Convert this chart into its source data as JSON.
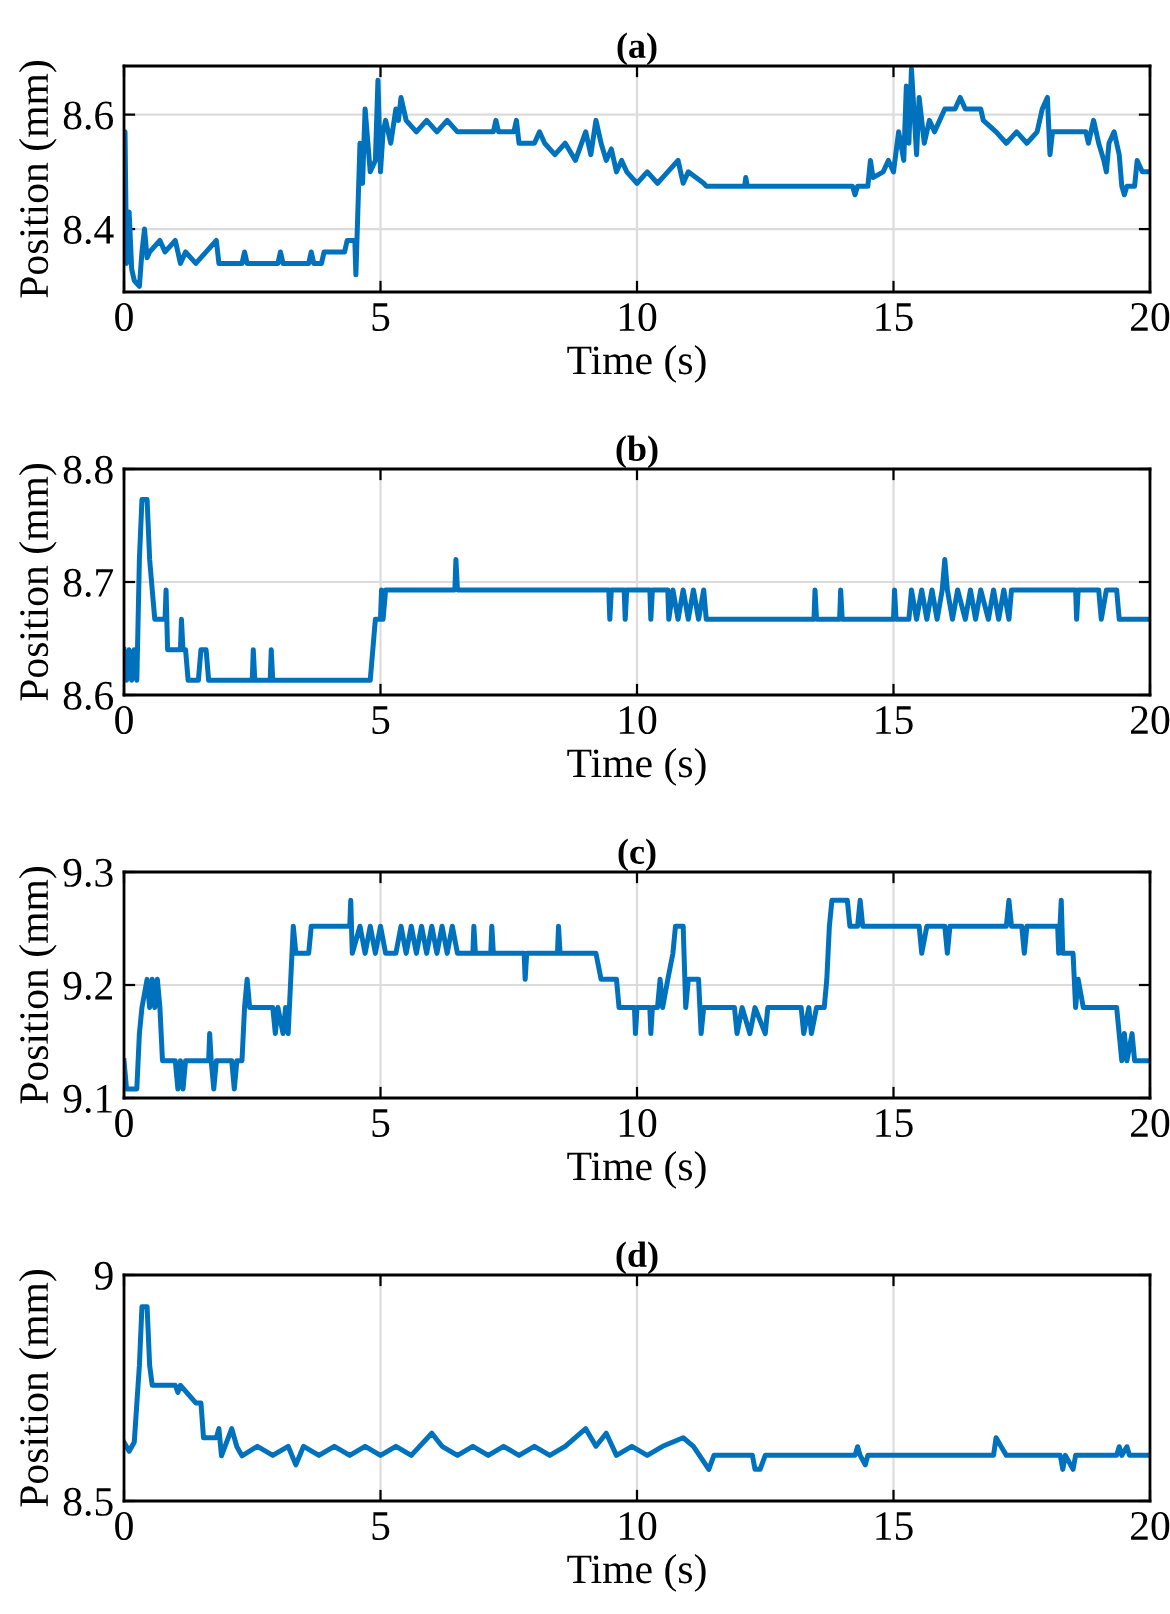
{
  "chart_data": [
    {
      "type": "line",
      "title": "(a)",
      "xlabel": "Time (s)",
      "ylabel": "Position (mm)",
      "xlim": [
        0,
        20
      ],
      "ylim": [
        8.29,
        8.685
      ],
      "xticks": [
        0,
        5,
        10,
        15,
        20
      ],
      "yticks": [
        8.4,
        8.6
      ],
      "grid": true,
      "series": [
        {
          "color": "#0072bd",
          "x": [
            0,
            0.02,
            0.05,
            0.1,
            0.15,
            0.2,
            0.3,
            0.35,
            0.4,
            0.45,
            0.5,
            0.7,
            0.8,
            1.0,
            1.1,
            1.2,
            1.4,
            1.6,
            1.8,
            1.85,
            2.3,
            2.35,
            2.4,
            3.0,
            3.05,
            3.1,
            3.6,
            3.65,
            3.7,
            3.85,
            3.9,
            4.3,
            4.35,
            4.5,
            4.52,
            4.6,
            4.65,
            4.7,
            4.8,
            4.9,
            4.95,
            5.0,
            5.05,
            5.1,
            5.2,
            5.3,
            5.35,
            5.4,
            5.5,
            5.7,
            5.9,
            6.1,
            6.3,
            6.5,
            7.2,
            7.25,
            7.3,
            7.6,
            7.65,
            7.7,
            8.0,
            8.1,
            8.2,
            8.4,
            8.6,
            8.8,
            9.0,
            9.1,
            9.2,
            9.3,
            9.4,
            9.5,
            9.6,
            9.7,
            9.8,
            10.0,
            10.2,
            10.4,
            10.6,
            10.8,
            10.9,
            11.0,
            11.3,
            11.35,
            12.1,
            12.12,
            12.15,
            14.2,
            14.25,
            14.3,
            14.5,
            14.55,
            14.6,
            14.8,
            14.9,
            15.0,
            15.1,
            15.2,
            15.25,
            15.3,
            15.35,
            15.45,
            15.5,
            15.6,
            15.7,
            15.8,
            15.9,
            16.0,
            16.2,
            16.3,
            16.4,
            16.7,
            16.75,
            17.0,
            17.2,
            17.4,
            17.6,
            17.8,
            17.9,
            18.0,
            18.05,
            18.1,
            18.75,
            18.8,
            18.9,
            19.0,
            19.1,
            19.15,
            19.2,
            19.3,
            19.4,
            19.45,
            19.5,
            19.55,
            19.7,
            19.75,
            19.85,
            20
          ],
          "values": [
            8.48,
            8.57,
            8.34,
            8.43,
            8.33,
            8.31,
            8.3,
            8.36,
            8.4,
            8.35,
            8.36,
            8.38,
            8.36,
            8.38,
            8.34,
            8.36,
            8.34,
            8.36,
            8.38,
            8.34,
            8.34,
            8.36,
            8.34,
            8.34,
            8.36,
            8.34,
            8.34,
            8.36,
            8.34,
            8.34,
            8.36,
            8.36,
            8.38,
            8.38,
            8.32,
            8.55,
            8.48,
            8.61,
            8.5,
            8.52,
            8.66,
            8.5,
            8.57,
            8.59,
            8.55,
            8.61,
            8.59,
            8.63,
            8.59,
            8.57,
            8.59,
            8.57,
            8.59,
            8.57,
            8.57,
            8.59,
            8.57,
            8.57,
            8.59,
            8.55,
            8.55,
            8.57,
            8.55,
            8.53,
            8.55,
            8.52,
            8.57,
            8.53,
            8.59,
            8.55,
            8.52,
            8.54,
            8.5,
            8.52,
            8.5,
            8.48,
            8.5,
            8.48,
            8.5,
            8.52,
            8.48,
            8.5,
            8.48,
            8.475,
            8.475,
            8.49,
            8.475,
            8.475,
            8.46,
            8.475,
            8.475,
            8.52,
            8.49,
            8.5,
            8.52,
            8.5,
            8.57,
            8.52,
            8.65,
            8.55,
            8.68,
            8.53,
            8.63,
            8.55,
            8.59,
            8.57,
            8.59,
            8.61,
            8.61,
            8.63,
            8.61,
            8.61,
            8.59,
            8.57,
            8.55,
            8.57,
            8.55,
            8.57,
            8.61,
            8.63,
            8.53,
            8.57,
            8.57,
            8.55,
            8.59,
            8.55,
            8.52,
            8.5,
            8.55,
            8.57,
            8.53,
            8.475,
            8.46,
            8.475,
            8.475,
            8.52,
            8.5,
            8.5
          ]
        }
      ]
    },
    {
      "type": "line",
      "title": "(b)",
      "xlabel": "Time (s)",
      "ylabel": "Position (mm)",
      "xlim": [
        0,
        20
      ],
      "ylim": [
        8.6,
        8.8
      ],
      "xticks": [
        0,
        5,
        10,
        15,
        20
      ],
      "yticks": [
        8.6,
        8.7,
        8.8
      ],
      "grid": true,
      "series": [
        {
          "color": "#0072bd",
          "x": [
            0,
            0.05,
            0.1,
            0.15,
            0.2,
            0.25,
            0.3,
            0.35,
            0.45,
            0.5,
            0.55,
            0.6,
            0.8,
            0.82,
            0.85,
            1.1,
            1.12,
            1.15,
            1.2,
            1.25,
            1.45,
            1.5,
            1.6,
            1.65,
            2.5,
            2.52,
            2.55,
            2.85,
            2.87,
            2.9,
            4.8,
            4.9,
            5.0,
            5.02,
            5.05,
            5.1,
            6.45,
            6.47,
            6.5,
            9.45,
            9.47,
            9.5,
            9.75,
            9.77,
            9.8,
            10.25,
            10.27,
            10.3,
            10.6,
            10.62,
            10.7,
            10.8,
            10.9,
            11.0,
            11.1,
            11.2,
            11.3,
            11.35,
            13.45,
            13.47,
            13.5,
            13.95,
            13.97,
            14.0,
            15.0,
            15.02,
            15.05,
            15.3,
            15.35,
            15.45,
            15.55,
            15.65,
            15.75,
            15.85,
            15.95,
            16.0,
            16.05,
            16.15,
            16.25,
            16.4,
            16.5,
            16.6,
            16.7,
            16.85,
            16.95,
            17.05,
            17.15,
            17.25,
            17.3,
            18.55,
            18.57,
            18.6,
            19.0,
            19.05,
            19.15,
            19.35,
            19.4,
            20
          ],
          "values": [
            8.64,
            8.613,
            8.64,
            8.613,
            8.64,
            8.613,
            8.72,
            8.773,
            8.773,
            8.72,
            8.693,
            8.667,
            8.667,
            8.693,
            8.64,
            8.64,
            8.667,
            8.64,
            8.64,
            8.613,
            8.613,
            8.64,
            8.64,
            8.613,
            8.613,
            8.64,
            8.613,
            8.613,
            8.64,
            8.613,
            8.613,
            8.667,
            8.667,
            8.693,
            8.667,
            8.693,
            8.693,
            8.72,
            8.693,
            8.693,
            8.667,
            8.693,
            8.693,
            8.667,
            8.693,
            8.693,
            8.667,
            8.693,
            8.693,
            8.667,
            8.693,
            8.667,
            8.693,
            8.667,
            8.693,
            8.667,
            8.693,
            8.667,
            8.667,
            8.693,
            8.667,
            8.667,
            8.693,
            8.667,
            8.667,
            8.693,
            8.667,
            8.667,
            8.693,
            8.667,
            8.693,
            8.667,
            8.693,
            8.667,
            8.693,
            8.72,
            8.693,
            8.667,
            8.693,
            8.667,
            8.693,
            8.667,
            8.693,
            8.667,
            8.693,
            8.667,
            8.693,
            8.667,
            8.693,
            8.693,
            8.667,
            8.693,
            8.693,
            8.667,
            8.693,
            8.693,
            8.667,
            8.667
          ]
        }
      ]
    },
    {
      "type": "line",
      "title": "(c)",
      "xlabel": "Time (s)",
      "ylabel": "Position (mm)",
      "xlim": [
        0,
        20
      ],
      "ylim": [
        9.1,
        9.3
      ],
      "xticks": [
        0,
        5,
        10,
        15,
        20
      ],
      "yticks": [
        9.1,
        9.2,
        9.3
      ],
      "grid": true,
      "series": [
        {
          "color": "#0072bd",
          "x": [
            0,
            0.05,
            0.25,
            0.3,
            0.35,
            0.45,
            0.5,
            0.55,
            0.6,
            0.65,
            0.7,
            0.75,
            1.0,
            1.05,
            1.1,
            1.15,
            1.2,
            1.65,
            1.67,
            1.7,
            1.75,
            1.8,
            2.1,
            2.15,
            2.2,
            2.3,
            2.35,
            2.4,
            2.45,
            2.9,
            2.95,
            3.0,
            3.1,
            3.15,
            3.2,
            3.3,
            3.35,
            3.6,
            3.65,
            4.4,
            4.42,
            4.45,
            4.6,
            4.7,
            4.8,
            4.9,
            5.0,
            5.1,
            5.3,
            5.4,
            5.5,
            5.6,
            5.7,
            5.8,
            5.9,
            6.0,
            6.1,
            6.2,
            6.3,
            6.4,
            6.5,
            6.8,
            6.82,
            6.85,
            7.15,
            7.17,
            7.2,
            7.8,
            7.82,
            7.85,
            8.45,
            8.47,
            8.5,
            9.2,
            9.3,
            9.6,
            9.65,
            9.95,
            9.97,
            10.0,
            10.25,
            10.27,
            10.3,
            10.4,
            10.45,
            10.5,
            10.6,
            10.7,
            10.75,
            10.9,
            10.95,
            11.0,
            11.2,
            11.25,
            11.3,
            11.9,
            11.95,
            12.05,
            12.2,
            12.3,
            12.5,
            12.55,
            13.2,
            13.25,
            13.35,
            13.4,
            13.5,
            13.65,
            13.7,
            13.75,
            13.8,
            14.1,
            14.15,
            14.3,
            14.35,
            14.4,
            15.5,
            15.55,
            15.65,
            16.0,
            16.05,
            16.1,
            17.2,
            17.25,
            17.3,
            17.5,
            17.55,
            17.6,
            18.2,
            18.22,
            18.27,
            18.3,
            18.5,
            18.55,
            18.6,
            18.7,
            19.35,
            19.45,
            19.5,
            19.55,
            19.65,
            19.7,
            20
          ],
          "values": [
            9.133,
            9.108,
            9.108,
            9.157,
            9.18,
            9.205,
            9.18,
            9.205,
            9.18,
            9.205,
            9.18,
            9.133,
            9.133,
            9.108,
            9.133,
            9.108,
            9.133,
            9.133,
            9.157,
            9.133,
            9.108,
            9.133,
            9.133,
            9.108,
            9.133,
            9.133,
            9.18,
            9.205,
            9.18,
            9.18,
            9.157,
            9.18,
            9.157,
            9.18,
            9.157,
            9.252,
            9.228,
            9.228,
            9.252,
            9.252,
            9.275,
            9.228,
            9.252,
            9.228,
            9.252,
            9.228,
            9.252,
            9.228,
            9.228,
            9.252,
            9.228,
            9.252,
            9.228,
            9.252,
            9.228,
            9.252,
            9.228,
            9.252,
            9.228,
            9.252,
            9.228,
            9.228,
            9.252,
            9.228,
            9.228,
            9.252,
            9.228,
            9.228,
            9.205,
            9.228,
            9.228,
            9.252,
            9.228,
            9.228,
            9.205,
            9.205,
            9.18,
            9.18,
            9.157,
            9.18,
            9.18,
            9.157,
            9.18,
            9.18,
            9.205,
            9.18,
            9.205,
            9.228,
            9.252,
            9.252,
            9.18,
            9.205,
            9.205,
            9.157,
            9.18,
            9.18,
            9.157,
            9.18,
            9.157,
            9.18,
            9.157,
            9.18,
            9.18,
            9.157,
            9.18,
            9.157,
            9.18,
            9.18,
            9.205,
            9.252,
            9.275,
            9.275,
            9.252,
            9.252,
            9.275,
            9.252,
            9.252,
            9.228,
            9.252,
            9.252,
            9.228,
            9.252,
            9.252,
            9.275,
            9.252,
            9.252,
            9.228,
            9.252,
            9.252,
            9.228,
            9.275,
            9.228,
            9.228,
            9.18,
            9.205,
            9.18,
            9.18,
            9.133,
            9.157,
            9.133,
            9.157,
            9.133,
            9.133
          ]
        }
      ]
    },
    {
      "type": "line",
      "title": "(d)",
      "xlabel": "Time (s)",
      "ylabel": "Position (mm)",
      "xlim": [
        0,
        20
      ],
      "ylim": [
        8.5,
        9
      ],
      "xticks": [
        0,
        5,
        10,
        15,
        20
      ],
      "yticks": [
        8.5,
        9
      ],
      "grid": true,
      "series": [
        {
          "color": "#0072bd",
          "x": [
            0,
            0.1,
            0.2,
            0.3,
            0.35,
            0.45,
            0.5,
            0.55,
            1.0,
            1.05,
            1.1,
            1.4,
            1.5,
            1.55,
            1.8,
            1.85,
            1.9,
            2.0,
            2.1,
            2.2,
            2.3,
            2.6,
            2.9,
            3.2,
            3.35,
            3.5,
            3.8,
            4.1,
            4.4,
            4.7,
            5.0,
            5.3,
            5.6,
            6.0,
            6.2,
            6.5,
            6.8,
            7.1,
            7.4,
            7.7,
            8.0,
            8.3,
            8.6,
            9.0,
            9.2,
            9.4,
            9.6,
            9.9,
            10.2,
            10.5,
            10.9,
            11.1,
            11.4,
            11.5,
            12.25,
            12.3,
            12.4,
            12.5,
            14.25,
            14.3,
            14.35,
            14.45,
            14.5,
            16.95,
            17.0,
            17.1,
            17.2,
            18.25,
            18.3,
            18.35,
            18.5,
            18.55,
            19.35,
            19.4,
            19.45,
            19.55,
            19.6,
            20
          ],
          "values": [
            8.63,
            8.61,
            8.63,
            8.8,
            8.93,
            8.93,
            8.8,
            8.756,
            8.756,
            8.74,
            8.756,
            8.717,
            8.717,
            8.64,
            8.64,
            8.66,
            8.6,
            8.63,
            8.66,
            8.62,
            8.6,
            8.621,
            8.601,
            8.621,
            8.58,
            8.621,
            8.601,
            8.621,
            8.601,
            8.621,
            8.601,
            8.621,
            8.601,
            8.65,
            8.621,
            8.601,
            8.621,
            8.601,
            8.621,
            8.601,
            8.621,
            8.601,
            8.621,
            8.66,
            8.621,
            8.65,
            8.601,
            8.621,
            8.601,
            8.621,
            8.64,
            8.621,
            8.57,
            8.601,
            8.601,
            8.57,
            8.57,
            8.601,
            8.601,
            8.62,
            8.601,
            8.58,
            8.601,
            8.601,
            8.64,
            8.62,
            8.601,
            8.601,
            8.57,
            8.601,
            8.57,
            8.601,
            8.601,
            8.62,
            8.601,
            8.62,
            8.601,
            8.601
          ]
        }
      ]
    }
  ]
}
